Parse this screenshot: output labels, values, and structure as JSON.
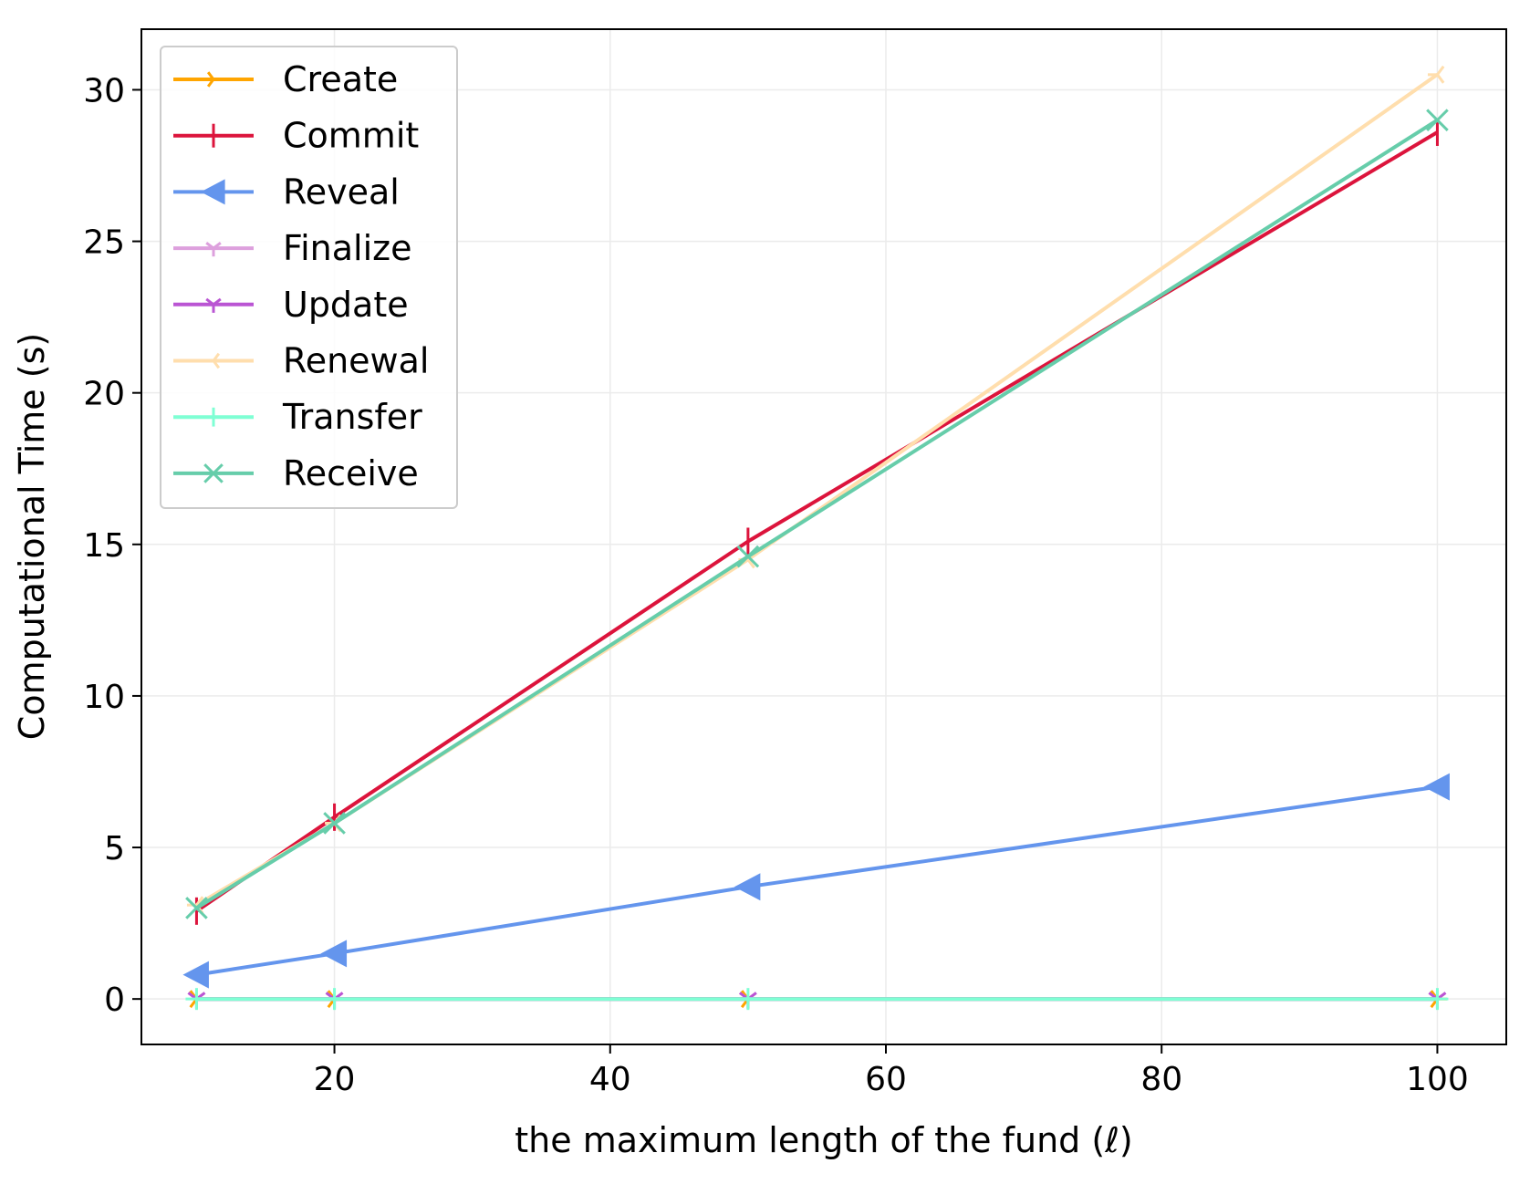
{
  "chart_data": {
    "type": "line",
    "xlabel": "the maximum length of the fund (ℓ)",
    "ylabel": "Computational Time (s)",
    "xlim": [
      6,
      105
    ],
    "ylim": [
      -1.5,
      32
    ],
    "xticks": [
      "20",
      "40",
      "60",
      "80",
      "100"
    ],
    "yticks": [
      "0",
      "5",
      "10",
      "15",
      "20",
      "25",
      "30"
    ],
    "grid": true,
    "legend_position": "upper-left",
    "x": [
      10,
      20,
      50,
      100
    ],
    "series": [
      {
        "name": "Create",
        "color": "#FFA500",
        "marker": "tri-right",
        "values": [
          0.0,
          0.0,
          0.0,
          0.0
        ]
      },
      {
        "name": "Commit",
        "color": "#DC143C",
        "marker": "vline",
        "values": [
          2.9,
          6.0,
          15.1,
          28.6
        ]
      },
      {
        "name": "Reveal",
        "color": "#6495ED",
        "marker": "triangle-left",
        "values": [
          0.8,
          1.5,
          3.7,
          7.0
        ]
      },
      {
        "name": "Finalize",
        "color": "#DDA0DD",
        "marker": "tri-down",
        "values": [
          0.0,
          0.0,
          0.0,
          0.0
        ]
      },
      {
        "name": "Update",
        "color": "#BA55D3",
        "marker": "tri-down",
        "values": [
          0.0,
          0.0,
          0.0,
          0.0
        ]
      },
      {
        "name": "Renewal",
        "color": "#FFDEAD",
        "marker": "tri-left",
        "values": [
          3.1,
          5.8,
          14.5,
          30.5
        ]
      },
      {
        "name": "Transfer",
        "color": "#7FFFD4",
        "marker": "plus",
        "values": [
          0.0,
          0.0,
          0.0,
          0.0
        ]
      },
      {
        "name": "Receive",
        "color": "#66CDAA",
        "marker": "x",
        "values": [
          3.0,
          5.8,
          14.6,
          29.0
        ]
      }
    ]
  }
}
